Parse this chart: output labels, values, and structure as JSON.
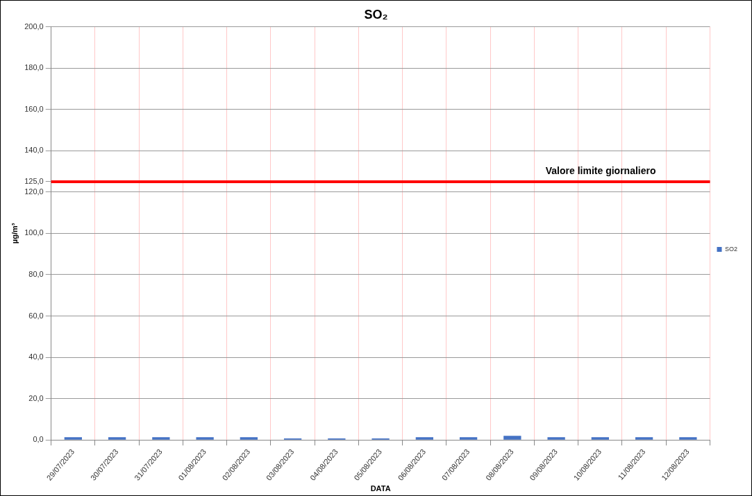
{
  "chart_data": {
    "type": "bar",
    "title": "SO₂",
    "xlabel": "DATA",
    "ylabel": "µg/m³",
    "categories": [
      "29/07/2023",
      "30/07/2023",
      "31/07/2023",
      "01/08/2023",
      "02/08/2023",
      "03/08/2023",
      "04/08/2023",
      "05/08/2023",
      "06/08/2023",
      "07/08/2023",
      "08/08/2023",
      "09/08/2023",
      "10/08/2023",
      "11/08/2023",
      "12/08/2023"
    ],
    "series": [
      {
        "name": "SO2",
        "color": "#4472c4",
        "values": [
          1.3,
          1.3,
          1.3,
          1.3,
          1.3,
          0.7,
          0.7,
          0.7,
          1.3,
          1.3,
          2.0,
          1.3,
          1.3,
          1.3,
          1.3
        ]
      }
    ],
    "ylim": [
      0,
      200
    ],
    "yticks": [
      {
        "value": 0,
        "label": "0,0"
      },
      {
        "value": 20,
        "label": "20,0"
      },
      {
        "value": 40,
        "label": "40,0"
      },
      {
        "value": 60,
        "label": "60,0"
      },
      {
        "value": 80,
        "label": "80,0"
      },
      {
        "value": 100,
        "label": "100,0"
      },
      {
        "value": 120,
        "label": "120,0"
      },
      {
        "value": 125,
        "label": "125,0"
      },
      {
        "value": 140,
        "label": "140,0"
      },
      {
        "value": 160,
        "label": "160,0"
      },
      {
        "value": 180,
        "label": "180,0"
      },
      {
        "value": 200,
        "label": "200,0"
      }
    ],
    "ref_lines": [
      {
        "axis": "y",
        "value": 125,
        "label": "Valore limite giornaliero",
        "color": "#ff0000"
      }
    ],
    "grid": true,
    "legend": "right"
  }
}
